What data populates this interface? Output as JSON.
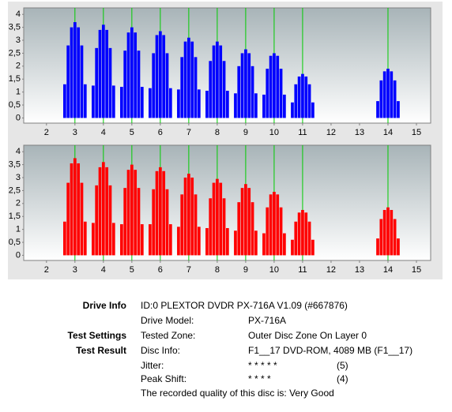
{
  "chart_data": [
    {
      "type": "bar",
      "color": "#0000ff",
      "vline_color": "#00cc00",
      "xlim": [
        1.2,
        15.5
      ],
      "ylim": [
        -0.2,
        4.25
      ],
      "xticks": [
        2,
        3,
        4,
        5,
        6,
        7,
        8,
        9,
        10,
        11,
        12,
        13,
        14,
        15
      ],
      "yticks": [
        0,
        {
          "value": 0.5,
          "label": "0,5"
        },
        1,
        {
          "value": 1.5,
          "label": "1,5"
        },
        2,
        {
          "value": 2.5,
          "label": "2,5"
        },
        3,
        {
          "value": 3.5,
          "label": "3,5"
        },
        4
      ],
      "vlines": [
        3,
        4,
        5,
        6,
        7,
        8,
        9,
        10,
        11,
        14
      ],
      "x": [
        2.64,
        2.76,
        2.88,
        3,
        3.12,
        3.24,
        3.36,
        3.64,
        3.76,
        3.88,
        4,
        4.12,
        4.24,
        4.36,
        4.64,
        4.76,
        4.88,
        5,
        5.12,
        5.24,
        5.36,
        5.64,
        5.76,
        5.88,
        6,
        6.12,
        6.24,
        6.36,
        6.64,
        6.76,
        6.88,
        7,
        7.12,
        7.24,
        7.36,
        7.64,
        7.76,
        7.88,
        8,
        8.12,
        8.24,
        8.36,
        8.64,
        8.76,
        8.88,
        9,
        9.12,
        9.24,
        9.36,
        9.64,
        9.76,
        9.88,
        10,
        10.12,
        10.24,
        10.36,
        10.64,
        10.76,
        10.88,
        11,
        11.12,
        11.24,
        11.36,
        13.64,
        13.76,
        13.88,
        14,
        14.12,
        14.24,
        14.36
      ],
      "values": [
        1.3,
        2.8,
        3.5,
        3.7,
        3.5,
        2.8,
        1.3,
        1.25,
        2.7,
        3.4,
        3.6,
        3.4,
        2.7,
        1.25,
        1.2,
        2.6,
        3.3,
        3.5,
        3.3,
        2.6,
        1.2,
        1.15,
        2.5,
        3.2,
        3.35,
        3.2,
        2.5,
        1.15,
        1.1,
        2.35,
        2.95,
        3.1,
        2.95,
        2.35,
        1.1,
        1.05,
        2.2,
        2.8,
        2.95,
        2.8,
        2.2,
        1.05,
        0.95,
        2.0,
        2.5,
        2.65,
        2.5,
        2.0,
        0.95,
        0.9,
        1.9,
        2.4,
        2.5,
        2.4,
        1.9,
        0.9,
        0.6,
        1.3,
        1.6,
        1.7,
        1.6,
        1.3,
        0.6,
        0.65,
        1.45,
        1.8,
        1.9,
        1.8,
        1.45,
        0.65
      ]
    },
    {
      "type": "bar",
      "color": "#ff0000",
      "vline_color": "#00cc00",
      "xlim": [
        1.2,
        15.5
      ],
      "ylim": [
        -0.2,
        4.25
      ],
      "xticks": [
        2,
        3,
        4,
        5,
        6,
        7,
        8,
        9,
        10,
        11,
        12,
        13,
        14,
        15
      ],
      "yticks": [
        0,
        {
          "value": 0.5,
          "label": "0,5"
        },
        1,
        {
          "value": 1.5,
          "label": "1,5"
        },
        2,
        {
          "value": 2.5,
          "label": "2,5"
        },
        3,
        {
          "value": 3.5,
          "label": "3,5"
        },
        4
      ],
      "vlines": [
        3,
        4,
        5,
        6,
        7,
        8,
        9,
        10,
        11,
        14
      ],
      "x": [
        2.64,
        2.76,
        2.88,
        3,
        3.12,
        3.24,
        3.36,
        3.64,
        3.76,
        3.88,
        4,
        4.12,
        4.24,
        4.36,
        4.64,
        4.76,
        4.88,
        5,
        5.12,
        5.24,
        5.36,
        5.64,
        5.76,
        5.88,
        6,
        6.12,
        6.24,
        6.36,
        6.64,
        6.76,
        6.88,
        7,
        7.12,
        7.24,
        7.36,
        7.64,
        7.76,
        7.88,
        8,
        8.12,
        8.24,
        8.36,
        8.64,
        8.76,
        8.88,
        9,
        9.12,
        9.24,
        9.36,
        9.64,
        9.76,
        9.88,
        10,
        10.12,
        10.24,
        10.36,
        10.64,
        10.76,
        10.88,
        11,
        11.12,
        11.24,
        11.36,
        13.64,
        13.76,
        13.88,
        14,
        14.12,
        14.24,
        14.36
      ],
      "values": [
        1.3,
        2.8,
        3.55,
        3.75,
        3.55,
        2.8,
        1.3,
        1.25,
        2.7,
        3.4,
        3.6,
        3.4,
        2.7,
        1.25,
        1.2,
        2.6,
        3.3,
        3.5,
        3.3,
        2.6,
        1.2,
        1.2,
        2.55,
        3.25,
        3.4,
        3.25,
        2.55,
        1.2,
        1.1,
        2.35,
        3.0,
        3.15,
        3.0,
        2.35,
        1.1,
        1.05,
        2.2,
        2.8,
        2.95,
        2.8,
        2.2,
        1.05,
        0.95,
        2.05,
        2.6,
        2.75,
        2.6,
        2.05,
        0.95,
        0.85,
        1.85,
        2.35,
        2.45,
        2.35,
        1.85,
        0.85,
        0.6,
        1.3,
        1.65,
        1.75,
        1.65,
        1.3,
        0.6,
        0.65,
        1.4,
        1.75,
        1.85,
        1.75,
        1.4,
        0.65
      ]
    }
  ],
  "info": {
    "drive_info": {
      "heading": "Drive Info",
      "text": "ID:0 PLEXTOR DVDR PX-716A V1.09 (#667876)"
    },
    "drive_model": {
      "label": "Drive Model:",
      "value": "PX-716A"
    },
    "test_settings": {
      "heading": "Test Settings",
      "label": "Tested Zone:",
      "value": "Outer Disc Zone On Layer 0"
    },
    "test_result": {
      "heading": "Test Result",
      "label": "Disc Info:",
      "value": "F1__17 DVD-ROM, 4089 MB (F1__17)"
    },
    "jitter": {
      "label": "Jitter:",
      "stars": "* * * * *",
      "score": "(5)"
    },
    "peak_shift": {
      "label": "Peak Shift:",
      "stars": "* * * *",
      "score": "(4)"
    },
    "quality": "The recorded quality of this disc is: Very Good"
  }
}
